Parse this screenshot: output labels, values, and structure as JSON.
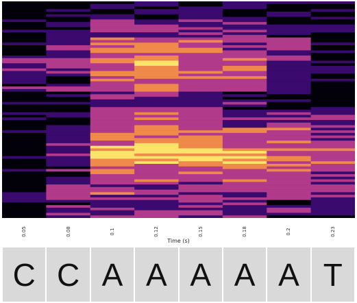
{
  "chart_data": {
    "type": "heatmap",
    "xlabel": "Time (s)",
    "ylabel": "",
    "title": "",
    "x_ticks": [
      "0.05",
      "0.08",
      "0.1",
      "0.12",
      "0.15",
      "0.18",
      "0.2",
      "0.23"
    ],
    "colormap": "inferno",
    "colors": {
      "background": "#02010a",
      "low": "#3a0a6e",
      "mid": "#b23a8a",
      "high": "#f08a4b",
      "peak": "#fce36a"
    },
    "column_energy": [
      [
        0.05,
        0.05,
        0.08,
        0.35,
        0.2,
        0.05,
        0.04,
        0.03,
        0.02,
        0.03,
        0.02,
        0.02
      ],
      [
        0.05,
        0.15,
        0.3,
        0.35,
        0.25,
        0.15,
        0.2,
        0.35,
        0.25,
        0.25,
        0.45,
        0.25
      ],
      [
        0.1,
        0.35,
        0.55,
        0.6,
        0.55,
        0.35,
        0.45,
        0.65,
        0.9,
        0.6,
        0.5,
        0.35
      ],
      [
        0.1,
        0.4,
        0.65,
        0.75,
        0.6,
        0.35,
        0.5,
        0.75,
        0.85,
        0.55,
        0.45,
        0.35
      ],
      [
        0.1,
        0.35,
        0.55,
        0.6,
        0.5,
        0.3,
        0.45,
        0.65,
        0.85,
        0.55,
        0.45,
        0.35
      ],
      [
        0.05,
        0.25,
        0.4,
        0.6,
        0.45,
        0.25,
        0.4,
        0.6,
        0.75,
        0.55,
        0.4,
        0.3
      ],
      [
        0.02,
        0.15,
        0.3,
        0.35,
        0.25,
        0.15,
        0.35,
        0.55,
        0.65,
        0.5,
        0.4,
        0.25
      ],
      [
        0.02,
        0.03,
        0.05,
        0.2,
        0.1,
        0.05,
        0.3,
        0.45,
        0.55,
        0.4,
        0.3,
        0.2
      ]
    ]
  },
  "bases": [
    "C",
    "C",
    "A",
    "A",
    "A",
    "A",
    "A",
    "T"
  ]
}
